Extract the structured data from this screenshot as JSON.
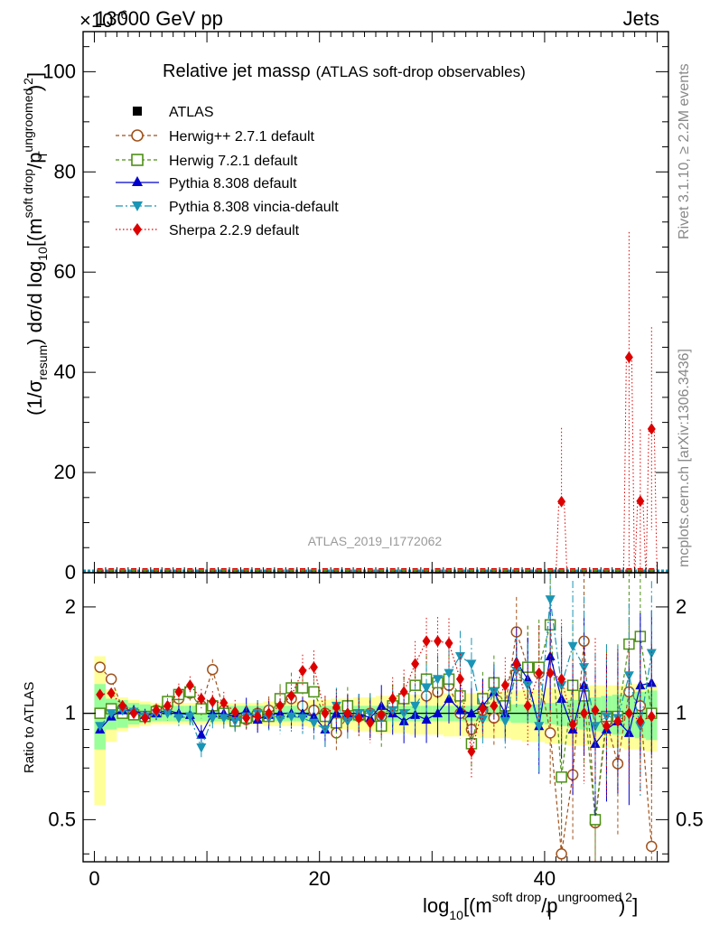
{
  "header": {
    "left": "13000 GeV pp",
    "right": "Jets",
    "exponent": "×10",
    "exponent_power": "−6"
  },
  "plot": {
    "title_main": "Relative jet massρ",
    "title_sub": "(ATLAS soft-drop observables)",
    "watermark": "ATLAS_2019_I1772062",
    "side_top": "Rivet 3.1.10, ≥ 2.2M events",
    "side_bottom": "mcplots.cern.ch [arXiv:1306.3436]"
  },
  "axes": {
    "ylabel_main": "(1/σresum) dσ/d log10[(m^soft drop/pT^ungroomed)^2]",
    "ylabel_main_parts": {
      "a": "(1/σ",
      "a_sub": "resum",
      "b": ") dσ/d log",
      "b_sub": "10",
      "c": "[(m",
      "c_sup": "soft drop",
      "d": "/p",
      "d_sup": "ungroomed",
      "d_sub": "T",
      "e": ")",
      "e_sup": "2",
      "f": "]"
    },
    "ylabel_ratio": "Ratio to ATLAS",
    "xlabel_parts": {
      "a": "log",
      "a_sub": "10",
      "b": "[(m",
      "b_sup": "soft drop",
      "c": "/p",
      "c_sup": "ungroomed",
      "c_sub": "T",
      "d": ")",
      "d_sup": "2",
      "e": "]"
    },
    "x_ticks": [
      "0",
      "20",
      "40"
    ],
    "y_ticks_main": [
      "0",
      "20",
      "40",
      "60",
      "80",
      "100"
    ],
    "y_ticks_ratio": [
      "0.5",
      "1",
      "2"
    ]
  },
  "legend": [
    {
      "label": "ATLAS",
      "color": "#000000",
      "marker": "square-filled"
    },
    {
      "label": "Herwig++ 2.7.1 default",
      "color": "#a0521b",
      "marker": "circle-open"
    },
    {
      "label": "Herwig 7.2.1 default",
      "color": "#4c8f15",
      "marker": "square-open"
    },
    {
      "label": "Pythia 8.308 default",
      "color": "#0000cc",
      "marker": "triangle-up"
    },
    {
      "label": "Pythia 8.308 vincia-default",
      "color": "#1a95b5",
      "marker": "triangle-down"
    },
    {
      "label": "Sherpa 2.2.9 default",
      "color": "#dd0000",
      "marker": "diamond"
    }
  ],
  "chart_data": {
    "type": "scatter",
    "x_range": [
      -1,
      51
    ],
    "main": {
      "ylim": [
        0,
        108
      ],
      "sherpa_points": [
        {
          "x": 41.5,
          "y": 14.2,
          "err": [
            14.2,
            28.9
          ]
        },
        {
          "x": 47.5,
          "y": 43.0,
          "err": [
            0,
            68
          ]
        },
        {
          "x": 48.5,
          "y": 14.3,
          "err": [
            0,
            28.6
          ]
        },
        {
          "x": 49.5,
          "y": 28.7,
          "err": [
            8.5,
            49
          ]
        }
      ]
    },
    "ratio": {
      "ylim": [
        0.38,
        2.5
      ],
      "log": true,
      "bins": [
        0.5,
        1.5,
        2.5,
        3.5,
        4.5,
        5.5,
        6.5,
        7.5,
        8.5,
        9.5,
        10.5,
        11.5,
        12.5,
        13.5,
        14.5,
        15.5,
        16.5,
        17.5,
        18.5,
        19.5,
        20.5,
        21.5,
        22.5,
        23.5,
        24.5,
        25.5,
        26.5,
        27.5,
        28.5,
        29.5,
        30.5,
        31.5,
        32.5,
        33.5,
        34.5,
        35.5,
        36.5,
        37.5,
        38.5,
        39.5,
        40.5,
        41.5,
        42.5,
        43.5,
        44.5,
        45.5,
        46.5,
        47.5,
        48.5,
        49.5
      ],
      "band_green": [
        0.21,
        0.1,
        0.09,
        0.07,
        0.06,
        0.05,
        0.05,
        0.05,
        0.05,
        0.05,
        0.05,
        0.05,
        0.05,
        0.05,
        0.05,
        0.05,
        0.05,
        0.05,
        0.05,
        0.05,
        0.05,
        0.05,
        0.05,
        0.05,
        0.05,
        0.05,
        0.05,
        0.05,
        0.05,
        0.05,
        0.05,
        0.05,
        0.05,
        0.05,
        0.05,
        0.05,
        0.05,
        0.06,
        0.06,
        0.06,
        0.07,
        0.08,
        0.09,
        0.1,
        0.11,
        0.12,
        0.13,
        0.14,
        0.15,
        0.16
      ],
      "band_yellow": [
        0.45,
        0.17,
        0.11,
        0.09,
        0.08,
        0.07,
        0.07,
        0.07,
        0.07,
        0.07,
        0.07,
        0.07,
        0.07,
        0.07,
        0.07,
        0.08,
        0.08,
        0.08,
        0.08,
        0.09,
        0.09,
        0.1,
        0.1,
        0.11,
        0.11,
        0.12,
        0.12,
        0.12,
        0.13,
        0.13,
        0.13,
        0.14,
        0.14,
        0.14,
        0.15,
        0.15,
        0.15,
        0.16,
        0.17,
        0.17,
        0.18,
        0.18,
        0.19,
        0.19,
        0.2,
        0.2,
        0.2,
        0.21,
        0.21,
        0.22
      ],
      "series": [
        {
          "name": "Herwig++ 2.7.1 default",
          "values": [
            1.35,
            1.25,
            1.03,
            1.0,
            0.98,
            1.02,
            1.05,
            1.1,
            1.14,
            1.05,
            1.33,
            1.02,
            0.96,
            0.96,
            1.0,
            1.02,
            1.08,
            1.1,
            1.05,
            1.02,
            1.0,
            0.88,
            0.98,
            0.98,
            1.0,
            0.98,
            1.05,
            1.1,
            1.2,
            1.12,
            1.15,
            1.2,
            1.0,
            0.9,
            1.02,
            0.97,
            1.04,
            1.7,
            1.35,
            1.3,
            0.88,
            0.4,
            0.67,
            1.6,
            0.49,
            0.95,
            0.72,
            1.15,
            1.05,
            0.42
          ]
        },
        {
          "name": "Herwig 7.2.1 default",
          "values": [
            1.0,
            1.03,
            1.0,
            0.99,
            0.98,
            1.01,
            1.08,
            1.13,
            1.15,
            1.03,
            1.05,
            1.0,
            0.95,
            0.97,
            0.98,
            0.98,
            1.1,
            1.18,
            1.18,
            1.15,
            0.98,
            0.94,
            1.05,
            0.99,
            0.98,
            0.92,
            1.05,
            1.1,
            1.2,
            1.25,
            1.22,
            1.25,
            1.12,
            0.82,
            1.1,
            1.22,
            1.05,
            1.28,
            1.35,
            1.35,
            1.78,
            0.66,
            1.2,
            1.12,
            0.5,
            0.98,
            0.98,
            1.57,
            1.65,
            1.0
          ]
        },
        {
          "name": "Pythia 8.308 default",
          "values": [
            0.9,
            0.98,
            1.02,
            1.02,
            0.99,
            1.0,
            1.02,
            1.0,
            0.99,
            0.87,
            1.0,
            1.0,
            0.98,
            1.02,
            0.96,
            0.99,
            1.0,
            1.0,
            1.0,
            0.98,
            0.9,
            1.0,
            1.0,
            1.0,
            0.97,
            1.05,
            1.0,
            0.95,
            0.99,
            0.96,
            1.0,
            1.1,
            1.02,
            1.0,
            1.05,
            1.15,
            1.0,
            1.4,
            1.25,
            0.92,
            1.45,
            1.1,
            0.9,
            1.2,
            0.82,
            0.9,
            0.95,
            0.88,
            1.2,
            1.22
          ]
        },
        {
          "name": "Pythia 8.308 vincia-default",
          "values": [
            0.92,
            1.0,
            1.02,
            1.01,
            0.98,
            1.0,
            1.0,
            0.97,
            0.98,
            0.8,
            0.97,
            0.97,
            0.95,
            0.98,
            1.0,
            0.97,
            0.96,
            0.98,
            0.97,
            0.94,
            0.9,
            1.05,
            0.95,
            1.0,
            1.0,
            0.97,
            1.02,
            1.0,
            1.05,
            1.18,
            1.25,
            1.3,
            1.45,
            1.38,
            0.96,
            1.15,
            0.95,
            1.32,
            1.2,
            0.92,
            2.1,
            1.2,
            1.55,
            1.35,
            0.92,
            0.98,
            0.97,
            1.28,
            0.92,
            1.48
          ]
        },
        {
          "name": "Sherpa 2.2.9 default",
          "values": [
            1.13,
            1.14,
            1.05,
            1.0,
            0.97,
            1.02,
            1.05,
            1.15,
            1.2,
            1.1,
            1.08,
            1.07,
            1.01,
            0.97,
            0.98,
            1.0,
            1.05,
            1.12,
            1.32,
            1.35,
            1.0,
            1.04,
            1.0,
            0.97,
            0.94,
            0.99,
            1.1,
            1.15,
            1.38,
            1.6,
            1.6,
            1.58,
            1.25,
            0.78,
            1.03,
            1.05,
            1.2,
            1.38,
            1.05,
            1.3,
            1.3,
            1.25,
            0.93,
            1.0,
            1.02,
            0.92,
            0.95,
            1.0,
            0.95,
            0.98
          ]
        }
      ]
    }
  }
}
